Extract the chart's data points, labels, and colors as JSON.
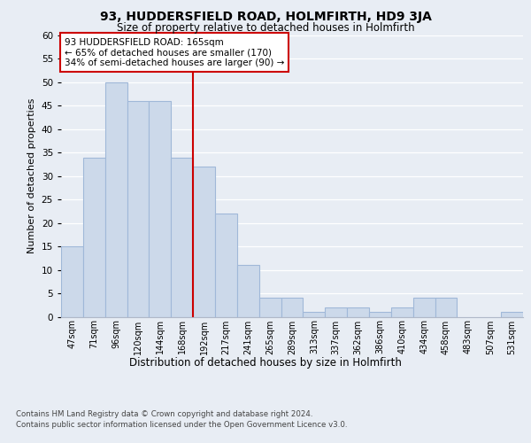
{
  "title": "93, HUDDERSFIELD ROAD, HOLMFIRTH, HD9 3JA",
  "subtitle": "Size of property relative to detached houses in Holmfirth",
  "xlabel": "Distribution of detached houses by size in Holmfirth",
  "ylabel": "Number of detached properties",
  "bar_labels": [
    "47sqm",
    "71sqm",
    "96sqm",
    "120sqm",
    "144sqm",
    "168sqm",
    "192sqm",
    "217sqm",
    "241sqm",
    "265sqm",
    "289sqm",
    "313sqm",
    "337sqm",
    "362sqm",
    "386sqm",
    "410sqm",
    "434sqm",
    "458sqm",
    "483sqm",
    "507sqm",
    "531sqm"
  ],
  "bar_values": [
    15,
    34,
    50,
    46,
    46,
    34,
    32,
    22,
    11,
    4,
    4,
    1,
    2,
    2,
    1,
    2,
    4,
    4,
    0,
    0,
    1
  ],
  "bar_color": "#ccd9ea",
  "bar_edge_color": "#a0b8d8",
  "annotation_line1": "93 HUDDERSFIELD ROAD: 165sqm",
  "annotation_line2": "← 65% of detached houses are smaller (170)",
  "annotation_line3": "34% of semi-detached houses are larger (90) →",
  "annotation_box_color": "#ffffff",
  "annotation_box_edge": "#cc0000",
  "redline_x": 5.5,
  "ylim": [
    0,
    60
  ],
  "yticks": [
    0,
    5,
    10,
    15,
    20,
    25,
    30,
    35,
    40,
    45,
    50,
    55,
    60
  ],
  "footer_line1": "Contains HM Land Registry data © Crown copyright and database right 2024.",
  "footer_line2": "Contains public sector information licensed under the Open Government Licence v3.0.",
  "bg_color": "#e8edf4",
  "plot_bg_color": "#e8edf4",
  "grid_color": "#ffffff"
}
